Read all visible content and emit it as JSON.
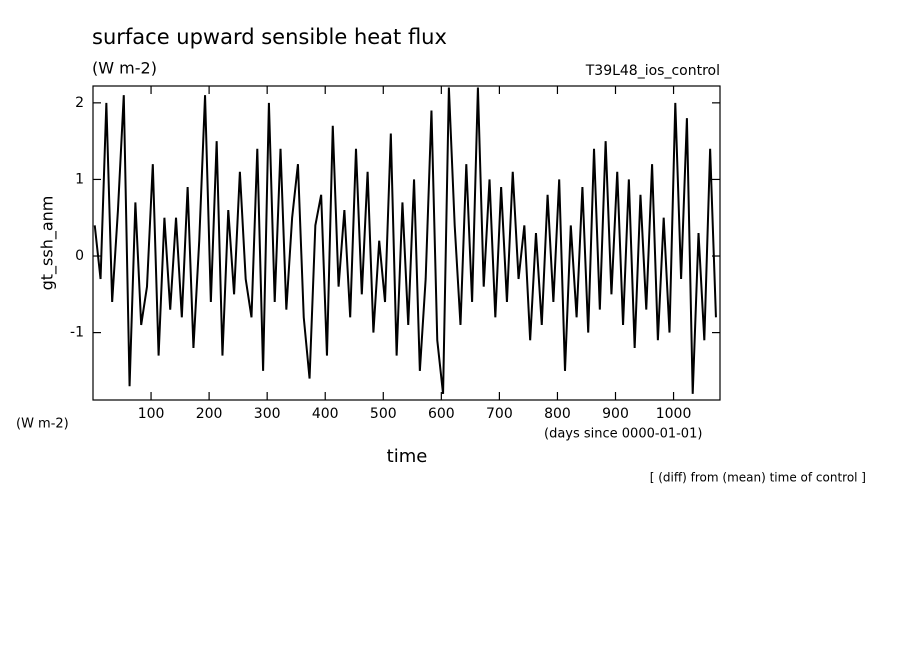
{
  "chart_data": {
    "type": "line",
    "title": "surface upward sensible heat flux",
    "units": "(W m-2)",
    "run_label": "T39L48_ios_control",
    "ylabel": "gt_ssh_anm",
    "y_units": "(W m-2)",
    "xlabel": "time",
    "x_units": "(days since 0000-01-01)",
    "note": "[ (diff) from (mean) time of control ]",
    "x": [
      3,
      13,
      23,
      33,
      43,
      53,
      63,
      73,
      83,
      93,
      103,
      113,
      123,
      133,
      143,
      153,
      163,
      173,
      183,
      193,
      203,
      213,
      223,
      233,
      243,
      253,
      263,
      273,
      283,
      293,
      303,
      313,
      323,
      333,
      343,
      353,
      363,
      373,
      383,
      393,
      403,
      413,
      423,
      433,
      443,
      453,
      463,
      473,
      483,
      493,
      503,
      513,
      523,
      533,
      543,
      553,
      563,
      573,
      583,
      593,
      603,
      613,
      623,
      633,
      643,
      653,
      663,
      673,
      683,
      693,
      703,
      713,
      723,
      733,
      743,
      753,
      763,
      773,
      783,
      793,
      803,
      813,
      823,
      833,
      843,
      853,
      863,
      873,
      883,
      893,
      903,
      913,
      923,
      933,
      943,
      953,
      963,
      973,
      983,
      993,
      1003,
      1013,
      1023,
      1033,
      1043,
      1053,
      1063,
      1073
    ],
    "series": [
      {
        "name": "gt_ssh_anm",
        "color": "#000000",
        "values": [
          0.4,
          -0.3,
          2.0,
          -0.6,
          0.6,
          2.1,
          -1.7,
          0.7,
          -0.9,
          -0.4,
          1.2,
          -1.3,
          0.5,
          -0.7,
          0.5,
          -0.8,
          0.9,
          -1.2,
          0.2,
          2.1,
          -0.6,
          1.5,
          -1.3,
          0.6,
          -0.5,
          1.1,
          -0.3,
          -0.8,
          1.4,
          -1.5,
          2.0,
          -0.6,
          1.4,
          -0.7,
          0.5,
          1.2,
          -0.8,
          -1.6,
          0.4,
          0.8,
          -1.3,
          1.7,
          -0.4,
          0.6,
          -0.8,
          1.4,
          -0.5,
          1.1,
          -1.0,
          0.2,
          -0.6,
          1.6,
          -1.3,
          0.7,
          -0.9,
          1.0,
          -1.5,
          -0.3,
          1.9,
          -1.1,
          -1.8,
          2.2,
          0.4,
          -0.9,
          1.2,
          -0.6,
          2.2,
          -0.4,
          1.0,
          -0.8,
          0.9,
          -0.6,
          1.1,
          -0.3,
          0.4,
          -1.1,
          0.3,
          -0.9,
          0.8,
          -0.6,
          1.0,
          -1.5,
          0.4,
          -0.8,
          0.9,
          -1.0,
          1.4,
          -0.7,
          1.5,
          -0.5,
          1.1,
          -0.9,
          1.0,
          -1.2,
          0.8,
          -0.7,
          1.2,
          -1.1,
          0.5,
          -1.0,
          2.0,
          -0.3,
          1.8,
          -1.8,
          0.3,
          -1.1,
          1.4,
          -0.8
        ]
      }
    ],
    "xlim": [
      0,
      1080
    ],
    "xticks": [
      100,
      200,
      300,
      400,
      500,
      600,
      700,
      800,
      900,
      1000
    ],
    "ylim": [
      -1.88,
      2.22
    ],
    "yticks": [
      -1,
      0,
      1,
      2
    ],
    "grid": false
  }
}
